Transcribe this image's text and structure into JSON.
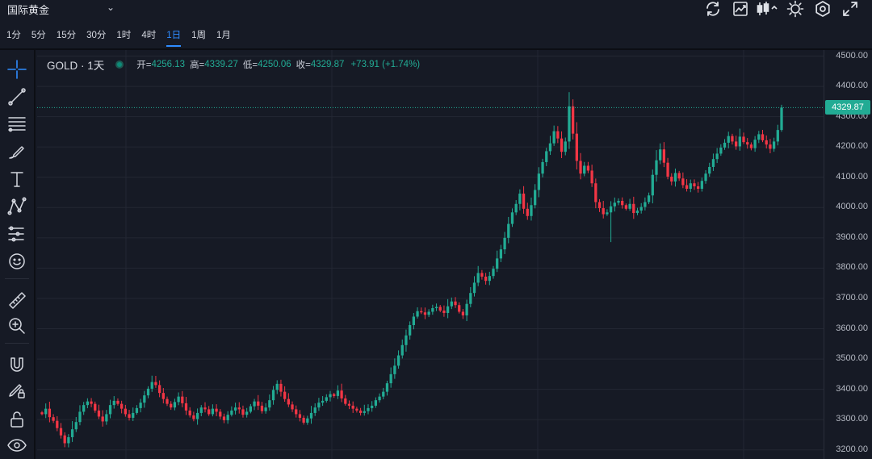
{
  "header": {
    "symbol_title": "国际黄金",
    "chevron_icon": "chevron-down-icon",
    "icons": [
      "refresh-icon",
      "chart-trend-icon",
      "candle-type-icon",
      "brightness-icon",
      "settings-hex-icon",
      "fullscreen-icon"
    ]
  },
  "intervals": [
    "1分",
    "5分",
    "15分",
    "30分",
    "1时",
    "4时",
    "1日",
    "1周",
    "1月"
  ],
  "active_interval": "1日",
  "tools": [
    "crosshair-icon",
    "trendline-icon",
    "fib-lines-icon",
    "brush-icon",
    "text-icon",
    "pattern-icon",
    "forecast-icon",
    "emoji-icon",
    "ruler-icon",
    "zoom-in-icon",
    "magnet-icon",
    "pencil-lock-icon",
    "lock-icon",
    "eye-icon"
  ],
  "legend": {
    "symbol": "GOLD · 1天",
    "open_label": "开=",
    "open_value": "4256.13",
    "high_label": "高=",
    "high_value": "4339.27",
    "low_label": "低=",
    "low_value": "4250.06",
    "close_label": "收=",
    "close_value": "4329.87",
    "change": "+73.91 (+1.74%)"
  },
  "colors": {
    "up": "#22ab94",
    "down": "#f23645",
    "accent": "#2f8cff",
    "background": "#161a25"
  },
  "current_price": "4329.87",
  "chart_data": {
    "type": "candlestick",
    "y_ticks": [
      "4500.00",
      "4400.00",
      "4300.00",
      "4200.00",
      "4100.00",
      "4000.00",
      "3900.00",
      "3800.00",
      "3700.00",
      "3600.00",
      "3500.00",
      "3400.00",
      "3300.00",
      "3200.00"
    ],
    "ylim": [
      3170,
      4520
    ],
    "grid": true,
    "last_price_line": 4329.87,
    "closes": [
      3318,
      3336,
      3308,
      3296,
      3272,
      3248,
      3222,
      3242,
      3268,
      3292,
      3326,
      3348,
      3360,
      3352,
      3330,
      3310,
      3294,
      3318,
      3348,
      3362,
      3352,
      3336,
      3318,
      3306,
      3322,
      3338,
      3356,
      3380,
      3402,
      3424,
      3414,
      3388,
      3368,
      3352,
      3340,
      3358,
      3376,
      3354,
      3330,
      3314,
      3302,
      3322,
      3340,
      3334,
      3318,
      3336,
      3326,
      3310,
      3298,
      3316,
      3330,
      3340,
      3334,
      3316,
      3326,
      3344,
      3360,
      3346,
      3328,
      3340,
      3364,
      3398,
      3418,
      3392,
      3368,
      3350,
      3334,
      3318,
      3306,
      3290,
      3304,
      3322,
      3340,
      3356,
      3362,
      3374,
      3384,
      3378,
      3396,
      3370,
      3352,
      3346,
      3336,
      3330,
      3322,
      3328,
      3338,
      3346,
      3364,
      3376,
      3392,
      3420,
      3450,
      3478,
      3512,
      3546,
      3578,
      3612,
      3640,
      3658,
      3654,
      3646,
      3656,
      3668,
      3672,
      3660,
      3652,
      3674,
      3690,
      3678,
      3656,
      3644,
      3682,
      3718,
      3752,
      3784,
      3772,
      3758,
      3774,
      3798,
      3832,
      3862,
      3900,
      3946,
      3984,
      4012,
      4046,
      3996,
      3972,
      4008,
      4058,
      4112,
      4150,
      4186,
      4212,
      4252,
      4228,
      4184,
      4218,
      4334,
      4244,
      4154,
      4112,
      4138,
      4122,
      4080,
      4018,
      3998,
      3978,
      3984,
      4004,
      4016,
      4022,
      4008,
      3996,
      4012,
      3982,
      3990,
      4002,
      4018,
      4040,
      4108,
      4156,
      4192,
      4148,
      4102,
      4086,
      4114,
      4096,
      4074,
      4062,
      4080,
      4070,
      4062,
      4088,
      4112,
      4134,
      4160,
      4178,
      4198,
      4214,
      4236,
      4218,
      4202,
      4234,
      4216,
      4208,
      4196,
      4224,
      4242,
      4222,
      4208,
      4194,
      4218,
      4256,
      4330
    ]
  }
}
